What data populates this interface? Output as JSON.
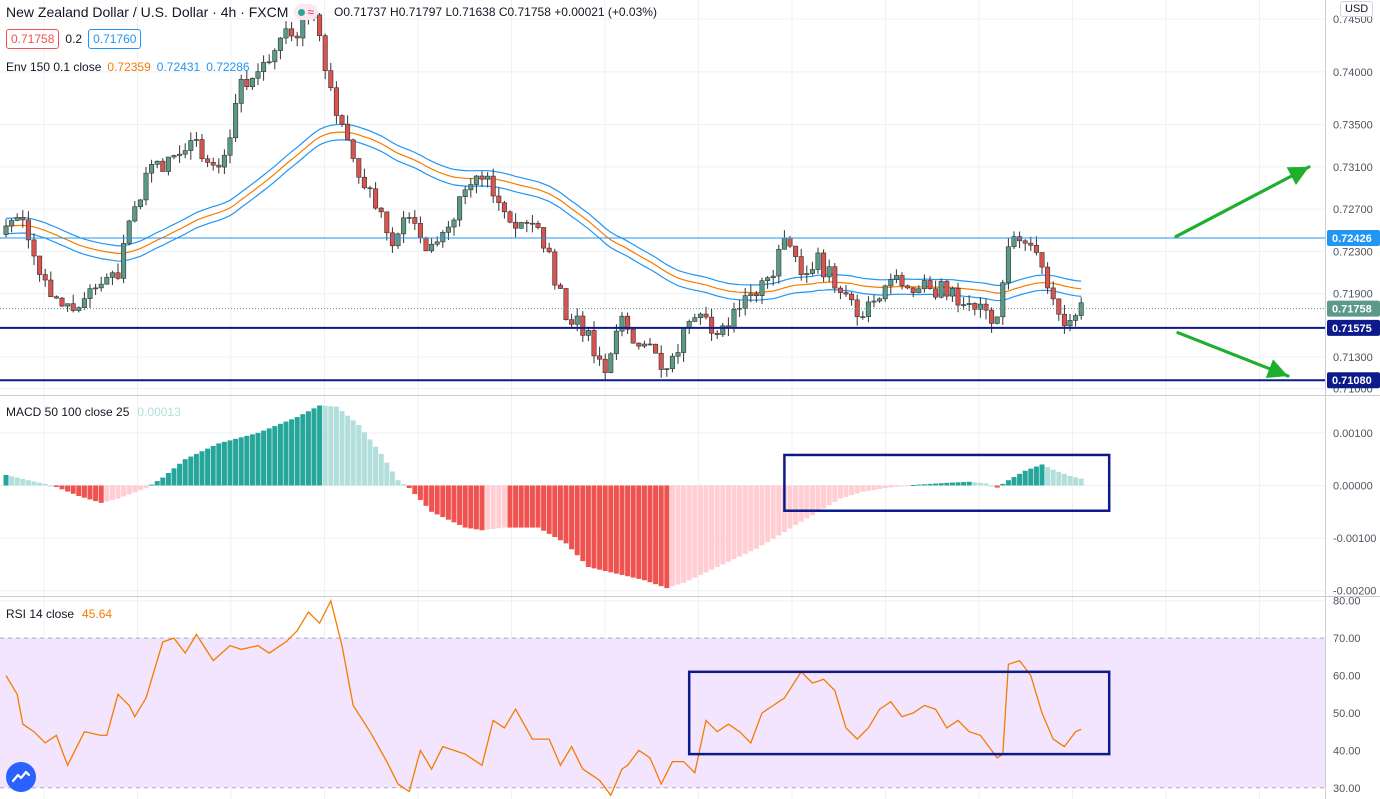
{
  "header": {
    "title": "New Zealand Dollar / U.S. Dollar · 4h · FXCM",
    "ohlc": "O0.71737  H0.71797  L0.71638  C0.71758  +0.00021 (+0.03%)",
    "bid": "0.71758",
    "spread": "0.2",
    "ask": "0.71760",
    "currency_button": "USD"
  },
  "colors": {
    "up": "#5b9a89",
    "down": "#d9534f",
    "macd_pos_strong": "#26a69a",
    "macd_pos_weak": "#b2dfdb",
    "macd_neg_strong": "#ef5350",
    "macd_neg_weak": "#ffcdd2",
    "env_upper": "#2196f3",
    "env_basis": "#f57c00",
    "rsi_line": "#f57c00",
    "rsi_band": "#f3e5fd",
    "hline_light": "#2196f3",
    "hline_dark": "#0d1a8c",
    "box": "#0d1a8c",
    "arrow": "#1fae2e"
  },
  "chart_data": [
    {
      "type": "candlestick",
      "title": "New Zealand Dollar / U.S. Dollar · 4h · FXCM",
      "ylim": [
        0.7094,
        0.7468
      ],
      "y_ticks": [
        "0.74500",
        "0.74000",
        "0.73500",
        "0.73100",
        "0.72700",
        "0.72300",
        "0.71900",
        "0.71300",
        "0.71000"
      ],
      "envelope_legend": {
        "label": "Env 150 0.1 close",
        "basis": "0.72359",
        "upper": "0.72431",
        "lower": "0.72286"
      },
      "horizontal_levels": [
        {
          "value": 0.72426,
          "label": "0.72426",
          "style": "light"
        },
        {
          "value": 0.71575,
          "label": "0.71575",
          "style": "dark"
        },
        {
          "value": 0.7108,
          "label": "0.71080",
          "style": "dark"
        }
      ],
      "last_price": {
        "value": 0.71758,
        "label": "0.71758"
      },
      "close_anchors": [
        [
          0,
          0.7245
        ],
        [
          3,
          0.7265
        ],
        [
          6,
          0.7205
        ],
        [
          9,
          0.7185
        ],
        [
          11,
          0.7178
        ],
        [
          14,
          0.7183
        ],
        [
          17,
          0.7207
        ],
        [
          20,
          0.7212
        ],
        [
          23,
          0.7272
        ],
        [
          26,
          0.7315
        ],
        [
          29,
          0.7312
        ],
        [
          33,
          0.7338
        ],
        [
          36,
          0.7313
        ],
        [
          39,
          0.732
        ],
        [
          42,
          0.7385
        ],
        [
          45,
          0.74
        ],
        [
          47,
          0.7415
        ],
        [
          49,
          0.744
        ],
        [
          52,
          0.7435
        ],
        [
          55,
          0.746
        ],
        [
          57,
          0.7405
        ],
        [
          59,
          0.736
        ],
        [
          61,
          0.7335
        ],
        [
          63,
          0.7305
        ],
        [
          65,
          0.729
        ],
        [
          67,
          0.7265
        ],
        [
          69,
          0.7235
        ],
        [
          72,
          0.727
        ],
        [
          75,
          0.7235
        ],
        [
          78,
          0.7245
        ],
        [
          81,
          0.7275
        ],
        [
          85,
          0.73
        ],
        [
          88,
          0.7285
        ],
        [
          90,
          0.726
        ],
        [
          93,
          0.7255
        ],
        [
          96,
          0.724
        ],
        [
          98,
          0.7205
        ],
        [
          100,
          0.717
        ],
        [
          103,
          0.7155
        ],
        [
          105,
          0.714
        ],
        [
          107,
          0.712
        ],
        [
          110,
          0.7172
        ],
        [
          112,
          0.715
        ],
        [
          115,
          0.7135
        ],
        [
          118,
          0.711
        ],
        [
          121,
          0.715
        ],
        [
          124,
          0.7165
        ],
        [
          127,
          0.7148
        ],
        [
          130,
          0.717
        ],
        [
          133,
          0.7185
        ],
        [
          136,
          0.7205
        ],
        [
          139,
          0.7235
        ],
        [
          142,
          0.7215
        ],
        [
          145,
          0.7222
        ],
        [
          148,
          0.72
        ],
        [
          150,
          0.7185
        ],
        [
          153,
          0.717
        ],
        [
          156,
          0.7192
        ],
        [
          159,
          0.7205
        ],
        [
          162,
          0.7195
        ],
        [
          165,
          0.7198
        ],
        [
          168,
          0.719
        ],
        [
          171,
          0.7185
        ],
        [
          174,
          0.718
        ],
        [
          177,
          0.716
        ],
        [
          179,
          0.724
        ],
        [
          181,
          0.7246
        ],
        [
          184,
          0.723
        ],
        [
          186,
          0.72
        ],
        [
          188,
          0.7175
        ],
        [
          190,
          0.7161
        ],
        [
          192,
          0.7176
        ]
      ],
      "candle_count": 193
    },
    {
      "type": "histogram",
      "title": "MACD 50 100 close 25",
      "value_label": "0.00013",
      "ylim": [
        -0.0021,
        0.0017
      ],
      "y_ticks": [
        "0.00100",
        "0.00000",
        "-0.00100",
        "-0.00200"
      ],
      "bar_count": 193,
      "anchors": [
        [
          0,
          0.0002
        ],
        [
          4,
          0.0001
        ],
        [
          7,
          3e-05
        ],
        [
          9,
          -3e-05
        ],
        [
          13,
          -0.0002
        ],
        [
          17,
          -0.00033
        ],
        [
          20,
          -0.00025
        ],
        [
          25,
          -5e-05
        ],
        [
          28,
          0.00015
        ],
        [
          32,
          0.0005
        ],
        [
          38,
          0.0008
        ],
        [
          45,
          0.001
        ],
        [
          52,
          0.0013
        ],
        [
          56,
          0.00152
        ],
        [
          59,
          0.0015
        ],
        [
          63,
          0.00115
        ],
        [
          67,
          0.0006
        ],
        [
          70,
          0.0001
        ],
        [
          72,
          -5e-05
        ],
        [
          76,
          -0.0005
        ],
        [
          82,
          -0.0008
        ],
        [
          85,
          -0.00085
        ],
        [
          89,
          -0.0008
        ],
        [
          95,
          -0.0008
        ],
        [
          100,
          -0.0011
        ],
        [
          104,
          -0.00155
        ],
        [
          110,
          -0.0017
        ],
        [
          114,
          -0.0018
        ],
        [
          118,
          -0.00195
        ],
        [
          121,
          -0.00185
        ],
        [
          126,
          -0.0016
        ],
        [
          130,
          -0.0014
        ],
        [
          134,
          -0.0012
        ],
        [
          138,
          -0.00095
        ],
        [
          141,
          -0.00075
        ],
        [
          145,
          -0.0005
        ],
        [
          149,
          -0.00025
        ],
        [
          153,
          -0.00012
        ],
        [
          157,
          -5e-05
        ],
        [
          162,
          1e-05
        ],
        [
          168,
          5e-05
        ],
        [
          172,
          7e-05
        ],
        [
          175,
          4e-05
        ],
        [
          177,
          -4e-05
        ],
        [
          179,
          0.0001
        ],
        [
          182,
          0.00028
        ],
        [
          185,
          0.0004
        ],
        [
          187,
          0.0003
        ],
        [
          190,
          0.00018
        ],
        [
          192,
          0.00013
        ]
      ],
      "annotation_box_range": [
        139,
        197
      ]
    },
    {
      "type": "line",
      "title": "RSI 14 close",
      "value_label": "45.64",
      "ylim": [
        27,
        81
      ],
      "y_ticks": [
        "80.00",
        "70.00",
        "60.00",
        "50.00",
        "40.00",
        "30.00"
      ],
      "band": [
        30,
        70
      ],
      "anchors": [
        [
          0,
          60
        ],
        [
          2,
          55
        ],
        [
          3,
          47
        ],
        [
          5,
          45
        ],
        [
          7,
          42
        ],
        [
          9,
          44
        ],
        [
          11,
          36
        ],
        [
          14,
          45
        ],
        [
          17,
          44
        ],
        [
          18,
          44
        ],
        [
          20,
          55
        ],
        [
          22,
          52
        ],
        [
          23,
          49
        ],
        [
          25,
          54
        ],
        [
          28,
          69
        ],
        [
          30,
          70
        ],
        [
          32,
          66
        ],
        [
          34,
          71
        ],
        [
          37,
          64
        ],
        [
          40,
          68
        ],
        [
          42,
          67
        ],
        [
          45,
          68
        ],
        [
          47,
          66
        ],
        [
          50,
          69
        ],
        [
          52,
          72
        ],
        [
          54,
          77
        ],
        [
          56,
          74
        ],
        [
          58,
          80
        ],
        [
          60,
          68
        ],
        [
          62,
          52
        ],
        [
          65,
          45
        ],
        [
          68,
          37
        ],
        [
          70,
          31
        ],
        [
          72,
          29
        ],
        [
          74,
          40
        ],
        [
          76,
          35
        ],
        [
          78,
          41
        ],
        [
          80,
          40
        ],
        [
          82,
          39
        ],
        [
          85,
          36
        ],
        [
          87,
          48
        ],
        [
          89,
          46
        ],
        [
          91,
          51
        ],
        [
          94,
          43
        ],
        [
          97,
          43
        ],
        [
          99,
          36
        ],
        [
          101,
          41
        ],
        [
          103,
          35
        ],
        [
          106,
          32
        ],
        [
          108,
          28
        ],
        [
          110,
          35
        ],
        [
          111,
          36
        ],
        [
          113,
          40
        ],
        [
          115,
          38
        ],
        [
          117,
          31
        ],
        [
          119,
          37
        ],
        [
          121,
          37
        ],
        [
          123,
          34
        ],
        [
          125,
          48
        ],
        [
          127,
          45
        ],
        [
          129,
          47
        ],
        [
          131,
          45
        ],
        [
          133,
          42
        ],
        [
          135,
          50
        ],
        [
          137,
          52
        ],
        [
          139,
          54
        ],
        [
          142,
          61
        ],
        [
          144,
          58
        ],
        [
          146,
          59
        ],
        [
          148,
          56
        ],
        [
          150,
          46
        ],
        [
          152,
          43
        ],
        [
          154,
          46
        ],
        [
          156,
          51
        ],
        [
          158,
          53
        ],
        [
          160,
          49
        ],
        [
          162,
          50
        ],
        [
          164,
          52
        ],
        [
          166,
          51
        ],
        [
          168,
          46
        ],
        [
          170,
          48
        ],
        [
          172,
          45
        ],
        [
          174,
          44
        ],
        [
          177,
          38
        ],
        [
          178,
          39
        ],
        [
          179,
          63
        ],
        [
          181,
          64
        ],
        [
          183,
          60
        ],
        [
          185,
          50
        ],
        [
          187,
          43
        ],
        [
          189,
          41
        ],
        [
          191,
          45
        ],
        [
          192,
          45.6
        ]
      ],
      "annotation_box_range": [
        122,
        197
      ]
    }
  ]
}
